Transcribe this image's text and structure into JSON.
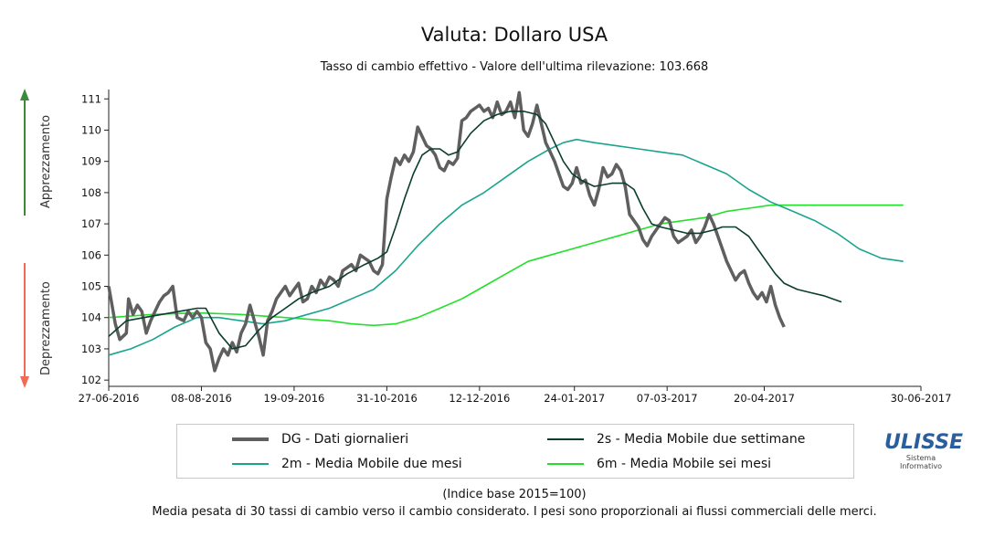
{
  "title": "Valuta: Dollaro USA",
  "subtitle": "Tasso di cambio effettivo - Valore dell'ultima rilevazione: 103.668",
  "side_labels": {
    "up": "Apprezzamento",
    "down": "Deprezzamento"
  },
  "colors": {
    "up_arrow": "#3a8a3a",
    "down_arrow": "#f06a55"
  },
  "footnote1": "(Indice base 2015=100)",
  "footnote2": "Media pesata di 30 tassi di cambio verso il cambio considerato. I pesi sono proporzionali ai flussi commerciali delle merci.",
  "logo": {
    "main": "ULISSE",
    "sub1": "Sistema",
    "sub2": "Informativo"
  },
  "chart_data": {
    "type": "line",
    "title": "Valuta: Dollaro USA",
    "subtitle": "Tasso di cambio effettivo - Valore dell'ultima rilevazione: 103.668",
    "x_range": [
      "27-06-2016",
      "30-06-2017"
    ],
    "x_ticks": [
      {
        "label": "27-06-2016",
        "day": 0
      },
      {
        "label": "08-08-2016",
        "day": 42
      },
      {
        "label": "19-09-2016",
        "day": 84
      },
      {
        "label": "31-10-2016",
        "day": 126
      },
      {
        "label": "12-12-2016",
        "day": 168
      },
      {
        "label": "24-01-2017",
        "day": 211
      },
      {
        "label": "07-03-2017",
        "day": 253
      },
      {
        "label": "20-04-2017",
        "day": 297
      },
      {
        "label": "30-06-2017",
        "day": 368
      }
    ],
    "ylim": [
      101.8,
      111.3
    ],
    "y_ticks": [
      102,
      103,
      104,
      105,
      106,
      107,
      108,
      109,
      110,
      111
    ],
    "grid": false,
    "legend_position": "bottom",
    "series": [
      {
        "name": "DG - Dati giornalieri",
        "color": "#5f5f5f",
        "width": 3.5,
        "points": [
          [
            0,
            105.0
          ],
          [
            3,
            103.8
          ],
          [
            5,
            103.3
          ],
          [
            8,
            103.5
          ],
          [
            9,
            104.6
          ],
          [
            11,
            104.1
          ],
          [
            13,
            104.4
          ],
          [
            15,
            104.2
          ],
          [
            17,
            103.5
          ],
          [
            19,
            103.9
          ],
          [
            21,
            104.2
          ],
          [
            23,
            104.5
          ],
          [
            25,
            104.7
          ],
          [
            27,
            104.8
          ],
          [
            29,
            105.0
          ],
          [
            31,
            104.0
          ],
          [
            34,
            103.9
          ],
          [
            36,
            104.2
          ],
          [
            38,
            104.0
          ],
          [
            40,
            104.2
          ],
          [
            42,
            104.0
          ],
          [
            44,
            103.2
          ],
          [
            46,
            103.0
          ],
          [
            48,
            102.3
          ],
          [
            50,
            102.7
          ],
          [
            52,
            103.0
          ],
          [
            54,
            102.8
          ],
          [
            56,
            103.2
          ],
          [
            58,
            102.9
          ],
          [
            60,
            103.5
          ],
          [
            62,
            103.8
          ],
          [
            64,
            104.4
          ],
          [
            66,
            103.9
          ],
          [
            68,
            103.4
          ],
          [
            70,
            102.8
          ],
          [
            72,
            103.9
          ],
          [
            74,
            104.2
          ],
          [
            76,
            104.6
          ],
          [
            78,
            104.8
          ],
          [
            80,
            105.0
          ],
          [
            82,
            104.7
          ],
          [
            84,
            104.9
          ],
          [
            86,
            105.1
          ],
          [
            88,
            104.5
          ],
          [
            90,
            104.6
          ],
          [
            92,
            105.0
          ],
          [
            94,
            104.8
          ],
          [
            96,
            105.2
          ],
          [
            98,
            105.0
          ],
          [
            100,
            105.3
          ],
          [
            102,
            105.2
          ],
          [
            104,
            105.0
          ],
          [
            106,
            105.5
          ],
          [
            108,
            105.6
          ],
          [
            110,
            105.7
          ],
          [
            112,
            105.5
          ],
          [
            114,
            106.0
          ],
          [
            116,
            105.9
          ],
          [
            118,
            105.8
          ],
          [
            120,
            105.5
          ],
          [
            122,
            105.4
          ],
          [
            124,
            105.7
          ],
          [
            126,
            107.8
          ],
          [
            128,
            108.5
          ],
          [
            130,
            109.1
          ],
          [
            132,
            108.9
          ],
          [
            134,
            109.2
          ],
          [
            136,
            109.0
          ],
          [
            138,
            109.3
          ],
          [
            140,
            110.1
          ],
          [
            142,
            109.8
          ],
          [
            144,
            109.5
          ],
          [
            146,
            109.4
          ],
          [
            148,
            109.2
          ],
          [
            150,
            108.8
          ],
          [
            152,
            108.7
          ],
          [
            154,
            109.0
          ],
          [
            156,
            108.9
          ],
          [
            158,
            109.1
          ],
          [
            160,
            110.3
          ],
          [
            162,
            110.4
          ],
          [
            164,
            110.6
          ],
          [
            166,
            110.7
          ],
          [
            168,
            110.8
          ],
          [
            170,
            110.6
          ],
          [
            172,
            110.7
          ],
          [
            174,
            110.4
          ],
          [
            176,
            110.9
          ],
          [
            178,
            110.5
          ],
          [
            180,
            110.6
          ],
          [
            182,
            110.9
          ],
          [
            184,
            110.4
          ],
          [
            186,
            111.2
          ],
          [
            188,
            110.0
          ],
          [
            190,
            109.8
          ],
          [
            192,
            110.2
          ],
          [
            194,
            110.8
          ],
          [
            196,
            110.2
          ],
          [
            198,
            109.6
          ],
          [
            200,
            109.3
          ],
          [
            202,
            109.0
          ],
          [
            204,
            108.6
          ],
          [
            206,
            108.2
          ],
          [
            208,
            108.1
          ],
          [
            210,
            108.3
          ],
          [
            212,
            108.8
          ],
          [
            214,
            108.3
          ],
          [
            216,
            108.4
          ],
          [
            218,
            107.9
          ],
          [
            220,
            107.6
          ],
          [
            222,
            108.1
          ],
          [
            224,
            108.8
          ],
          [
            226,
            108.5
          ],
          [
            228,
            108.6
          ],
          [
            230,
            108.9
          ],
          [
            232,
            108.7
          ],
          [
            234,
            108.2
          ],
          [
            236,
            107.3
          ],
          [
            238,
            107.1
          ],
          [
            240,
            106.9
          ],
          [
            242,
            106.5
          ],
          [
            244,
            106.3
          ],
          [
            246,
            106.6
          ],
          [
            248,
            106.8
          ],
          [
            250,
            107.0
          ],
          [
            252,
            107.2
          ],
          [
            254,
            107.1
          ],
          [
            256,
            106.6
          ],
          [
            258,
            106.4
          ],
          [
            260,
            106.5
          ],
          [
            262,
            106.6
          ],
          [
            264,
            106.8
          ],
          [
            266,
            106.4
          ],
          [
            268,
            106.6
          ],
          [
            270,
            106.9
          ],
          [
            272,
            107.3
          ],
          [
            274,
            107.0
          ],
          [
            276,
            106.6
          ],
          [
            278,
            106.2
          ],
          [
            280,
            105.8
          ],
          [
            282,
            105.5
          ],
          [
            284,
            105.2
          ],
          [
            286,
            105.4
          ],
          [
            288,
            105.5
          ],
          [
            290,
            105.1
          ],
          [
            292,
            104.8
          ],
          [
            294,
            104.6
          ],
          [
            296,
            104.8
          ],
          [
            298,
            104.5
          ],
          [
            300,
            105.0
          ],
          [
            302,
            104.4
          ],
          [
            304,
            104.0
          ],
          [
            306,
            103.7
          ]
        ]
      },
      {
        "name": "2s - Media Mobile due settimane",
        "color": "#0b3d2e",
        "width": 1.6,
        "points": [
          [
            0,
            103.4
          ],
          [
            8,
            103.9
          ],
          [
            16,
            104.0
          ],
          [
            24,
            104.1
          ],
          [
            32,
            104.2
          ],
          [
            40,
            104.3
          ],
          [
            44,
            104.3
          ],
          [
            50,
            103.5
          ],
          [
            56,
            103.0
          ],
          [
            62,
            103.1
          ],
          [
            68,
            103.6
          ],
          [
            74,
            104.0
          ],
          [
            80,
            104.3
          ],
          [
            86,
            104.6
          ],
          [
            92,
            104.8
          ],
          [
            100,
            105.0
          ],
          [
            108,
            105.4
          ],
          [
            116,
            105.7
          ],
          [
            122,
            105.9
          ],
          [
            126,
            106.1
          ],
          [
            130,
            106.9
          ],
          [
            134,
            107.8
          ],
          [
            138,
            108.6
          ],
          [
            142,
            109.2
          ],
          [
            146,
            109.4
          ],
          [
            150,
            109.4
          ],
          [
            154,
            109.2
          ],
          [
            158,
            109.3
          ],
          [
            164,
            109.9
          ],
          [
            170,
            110.3
          ],
          [
            176,
            110.5
          ],
          [
            182,
            110.6
          ],
          [
            188,
            110.6
          ],
          [
            194,
            110.5
          ],
          [
            198,
            110.2
          ],
          [
            202,
            109.6
          ],
          [
            206,
            109.0
          ],
          [
            210,
            108.6
          ],
          [
            214,
            108.4
          ],
          [
            220,
            108.2
          ],
          [
            228,
            108.3
          ],
          [
            234,
            108.3
          ],
          [
            238,
            108.1
          ],
          [
            242,
            107.5
          ],
          [
            246,
            107.0
          ],
          [
            250,
            106.9
          ],
          [
            256,
            106.8
          ],
          [
            262,
            106.7
          ],
          [
            268,
            106.7
          ],
          [
            274,
            106.8
          ],
          [
            278,
            106.9
          ],
          [
            284,
            106.9
          ],
          [
            290,
            106.6
          ],
          [
            294,
            106.2
          ],
          [
            298,
            105.8
          ],
          [
            302,
            105.4
          ],
          [
            306,
            105.1
          ],
          [
            312,
            104.9
          ],
          [
            318,
            104.8
          ],
          [
            324,
            104.7
          ],
          [
            328,
            104.6
          ],
          [
            332,
            104.5
          ]
        ]
      },
      {
        "name": "2m - Media Mobile due mesi",
        "color": "#1aa48e",
        "width": 1.6,
        "points": [
          [
            0,
            102.8
          ],
          [
            10,
            103.0
          ],
          [
            20,
            103.3
          ],
          [
            30,
            103.7
          ],
          [
            40,
            104.0
          ],
          [
            50,
            104.0
          ],
          [
            60,
            103.9
          ],
          [
            70,
            103.8
          ],
          [
            80,
            103.9
          ],
          [
            90,
            104.1
          ],
          [
            100,
            104.3
          ],
          [
            110,
            104.6
          ],
          [
            120,
            104.9
          ],
          [
            130,
            105.5
          ],
          [
            140,
            106.3
          ],
          [
            150,
            107.0
          ],
          [
            160,
            107.6
          ],
          [
            170,
            108.0
          ],
          [
            180,
            108.5
          ],
          [
            190,
            109.0
          ],
          [
            200,
            109.4
          ],
          [
            206,
            109.6
          ],
          [
            212,
            109.7
          ],
          [
            220,
            109.6
          ],
          [
            230,
            109.5
          ],
          [
            240,
            109.4
          ],
          [
            250,
            109.3
          ],
          [
            260,
            109.2
          ],
          [
            270,
            108.9
          ],
          [
            280,
            108.6
          ],
          [
            290,
            108.1
          ],
          [
            300,
            107.7
          ],
          [
            310,
            107.4
          ],
          [
            320,
            107.1
          ],
          [
            330,
            106.7
          ],
          [
            340,
            106.2
          ],
          [
            350,
            105.9
          ],
          [
            360,
            105.8
          ]
        ]
      },
      {
        "name": "6m - Media Mobile sei mesi",
        "color": "#22e02a",
        "width": 1.6,
        "points": [
          [
            0,
            104.0
          ],
          [
            20,
            104.1
          ],
          [
            40,
            104.15
          ],
          [
            60,
            104.1
          ],
          [
            80,
            104.0
          ],
          [
            100,
            103.9
          ],
          [
            110,
            103.8
          ],
          [
            120,
            103.75
          ],
          [
            130,
            103.8
          ],
          [
            140,
            104.0
          ],
          [
            150,
            104.3
          ],
          [
            160,
            104.6
          ],
          [
            170,
            105.0
          ],
          [
            180,
            105.4
          ],
          [
            190,
            105.8
          ],
          [
            200,
            106.0
          ],
          [
            210,
            106.2
          ],
          [
            220,
            106.4
          ],
          [
            230,
            106.6
          ],
          [
            240,
            106.8
          ],
          [
            250,
            107.0
          ],
          [
            260,
            107.1
          ],
          [
            270,
            107.2
          ],
          [
            280,
            107.4
          ],
          [
            290,
            107.5
          ],
          [
            300,
            107.6
          ],
          [
            310,
            107.6
          ],
          [
            320,
            107.6
          ],
          [
            330,
            107.6
          ],
          [
            340,
            107.6
          ],
          [
            350,
            107.6
          ],
          [
            360,
            107.6
          ]
        ]
      }
    ]
  }
}
